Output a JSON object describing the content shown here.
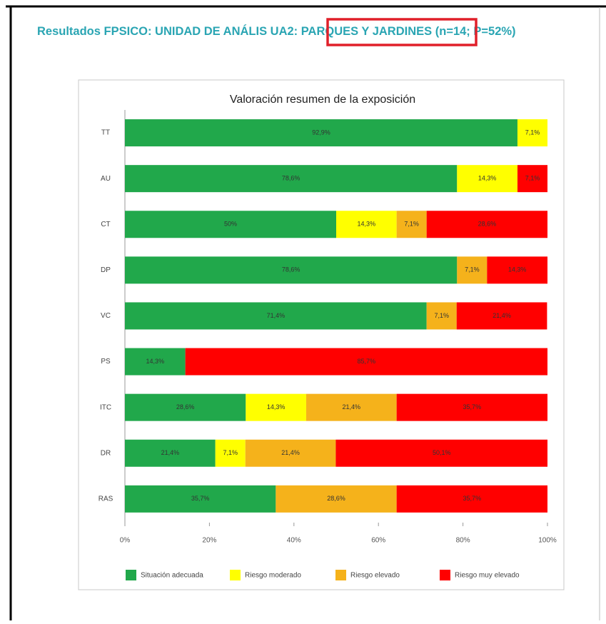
{
  "page_title": [
    "Resultados FPSICO: UNIDAD DE ANÁLIS UA2: ",
    "PARQUES Y JARDINES",
    " (n=14; P=52%)"
  ],
  "chart_data": {
    "type": "stacked_barh",
    "title": "Valoración resumen de la exposición",
    "categories": [
      "TT",
      "AU",
      "CT",
      "DP",
      "VC",
      "PS",
      "ITC",
      "DR",
      "RAS"
    ],
    "series": [
      {
        "name": "Situación adecuada",
        "color": "#21a84b",
        "values": [
          92.9,
          78.6,
          50,
          78.6,
          71.4,
          14.3,
          28.6,
          21.4,
          35.7
        ],
        "value_labels": [
          "92,9%",
          "78,6%",
          "50%",
          "78,6%",
          "71,4%",
          "14,3%",
          "28,6%",
          "21,4%",
          "35,7%"
        ]
      },
      {
        "name": "Riesgo moderado",
        "color": "#ffff00",
        "values": [
          7.1,
          14.3,
          14.3,
          0,
          0,
          0,
          14.3,
          7.1,
          0
        ],
        "value_labels": [
          "7,1%",
          "14,3%",
          "14,3%",
          null,
          null,
          null,
          "14,3%",
          "7,1%",
          null
        ]
      },
      {
        "name": "Riesgo elevado",
        "color": "#f5b21b",
        "values": [
          0,
          0,
          7.1,
          7.1,
          7.1,
          0,
          21.4,
          21.4,
          28.6
        ],
        "value_labels": [
          null,
          null,
          "7,1%",
          "7,1%",
          "7,1%",
          null,
          "21,4%",
          "21,4%",
          "28,6%"
        ]
      },
      {
        "name": "Riesgo muy elevado",
        "color": "#ff0000",
        "values": [
          0,
          7.1,
          28.6,
          14.3,
          21.4,
          85.7,
          35.7,
          50.1,
          35.7
        ],
        "value_labels": [
          null,
          "7,1%",
          "28,6%",
          "14,3%",
          "21,4%",
          "85,7%",
          "35,7%",
          "50,1%",
          "35,7%"
        ]
      }
    ],
    "xlim": [
      0,
      100
    ],
    "xticks": [
      {
        "value": 0,
        "label": "0%"
      },
      {
        "value": 20,
        "label": "20%"
      },
      {
        "value": 40,
        "label": "40%"
      },
      {
        "value": 60,
        "label": "60%"
      },
      {
        "value": 80,
        "label": "80%"
      },
      {
        "value": 100,
        "label": "100%"
      }
    ],
    "legend": "bottom"
  }
}
